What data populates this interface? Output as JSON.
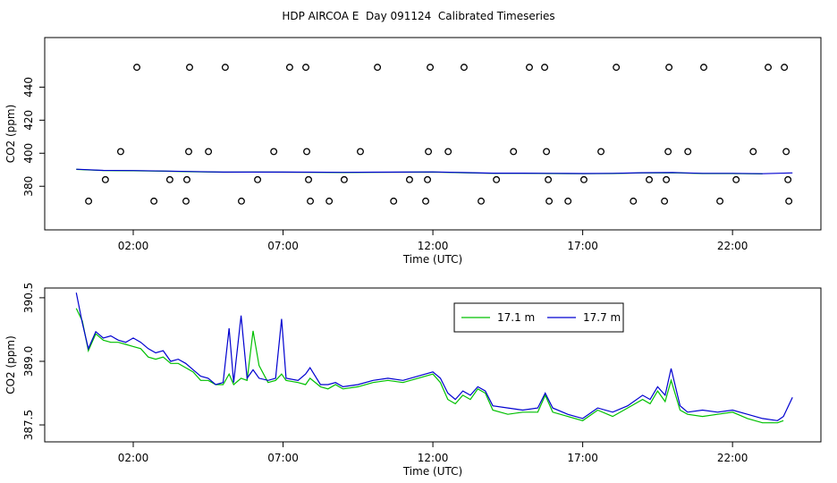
{
  "title": "HDP AIRCOA E  Day 091124  Calibrated Timeseries",
  "chart_data": [
    {
      "type": "line",
      "xlabel": "Time (UTC)",
      "ylabel": "CO2 (ppm)",
      "xlim": [
        -0.955,
        24.95
      ],
      "ylim": [
        353.6,
        470
      ],
      "xticks": [
        {
          "value": 2,
          "label": "02:00"
        },
        {
          "value": 7,
          "label": "07:00"
        },
        {
          "value": 12,
          "label": "12:00"
        },
        {
          "value": 17,
          "label": "17:00"
        },
        {
          "value": 22,
          "label": "22:00"
        }
      ],
      "yticks": [
        380,
        400,
        420,
        440
      ],
      "x": [
        0.1,
        1,
        2,
        3,
        4,
        5,
        6,
        7,
        8,
        9,
        10,
        11,
        12,
        13,
        14,
        15,
        16,
        17,
        18,
        19,
        20,
        21,
        22,
        23,
        24
      ],
      "series": [
        {
          "color": "#00c000",
          "values": [
            390.2,
            389.5,
            389.4,
            389.1,
            388.8,
            388.5,
            388.6,
            388.5,
            388.4,
            388.3,
            388.4,
            388.5,
            388.6,
            388.2,
            387.8,
            387.8,
            387.7,
            387.6,
            387.7,
            388.1,
            388.2,
            387.7,
            387.7,
            387.5,
            null
          ]
        },
        {
          "color": "#0000d0",
          "values": [
            390.3,
            389.6,
            389.5,
            389.2,
            388.9,
            388.6,
            388.6,
            388.6,
            388.5,
            388.4,
            388.5,
            388.6,
            388.7,
            388.3,
            387.9,
            387.9,
            387.8,
            387.7,
            387.8,
            388.2,
            388.3,
            387.8,
            387.8,
            387.6,
            388.1
          ]
        },
        {
          "type": "scatter",
          "color": "#000000",
          "x": [
            2.12,
            3.88,
            5.07,
            7.22,
            7.76,
            10.15,
            11.91,
            13.04,
            15.22,
            15.73,
            18.12,
            19.88,
            21.04,
            23.19,
            23.73,
            1.58,
            3.85,
            4.51,
            6.69,
            7.79,
            9.58,
            11.85,
            12.51,
            14.69,
            15.79,
            17.61,
            19.85,
            20.51,
            22.69,
            23.79,
            1.07,
            3.22,
            3.79,
            6.15,
            7.85,
            9.04,
            11.22,
            11.82,
            14.12,
            15.85,
            17.04,
            19.22,
            19.79,
            22.12,
            23.85,
            0.51,
            2.69,
            3.76,
            5.61,
            7.91,
            8.54,
            10.69,
            11.76,
            13.61,
            15.88,
            16.51,
            18.69,
            19.73,
            21.58,
            23.88
          ],
          "values": [
            452,
            452,
            452,
            452,
            452,
            452,
            452,
            452,
            452,
            452,
            452,
            452,
            452,
            452,
            452,
            401,
            401,
            401,
            401,
            401,
            401,
            401,
            401,
            401,
            401,
            401,
            401,
            401,
            401,
            401,
            384,
            384,
            384,
            384,
            384,
            384,
            384,
            384,
            384,
            384,
            384,
            384,
            384,
            384,
            384,
            371,
            371,
            371,
            371,
            371,
            371,
            371,
            371,
            371,
            371,
            371,
            371,
            371,
            371,
            371
          ]
        }
      ]
    },
    {
      "type": "line",
      "xlabel": "Time (UTC)",
      "ylabel": "CO2 (ppm)",
      "xlim": [
        -0.955,
        24.95
      ],
      "ylim": [
        387.1,
        390.73
      ],
      "xticks": [
        {
          "value": 2,
          "label": "02:00"
        },
        {
          "value": 7,
          "label": "07:00"
        },
        {
          "value": 12,
          "label": "12:00"
        },
        {
          "value": 17,
          "label": "17:00"
        },
        {
          "value": 22,
          "label": "22:00"
        }
      ],
      "yticks": [
        {
          "value": 387.5,
          "label": "387.5"
        },
        {
          "value": 389,
          "label": "389.0"
        },
        {
          "value": 390.5,
          "label": "390.5"
        }
      ],
      "legend": "top",
      "x": [
        0.1,
        0.3,
        0.5,
        0.75,
        1,
        1.25,
        1.5,
        1.75,
        2,
        2.25,
        2.5,
        2.75,
        3,
        3.25,
        3.5,
        3.75,
        4,
        4.25,
        4.5,
        4.75,
        5,
        5.2,
        5.35,
        5.6,
        5.8,
        6,
        6.2,
        6.5,
        6.75,
        6.95,
        7.1,
        7.5,
        7.75,
        7.9,
        8.25,
        8.5,
        8.75,
        9,
        9.5,
        10,
        10.5,
        11,
        11.5,
        12,
        12.25,
        12.5,
        12.75,
        13,
        13.25,
        13.5,
        13.75,
        14,
        14.5,
        15,
        15.5,
        15.75,
        16,
        16.5,
        17,
        17.5,
        18,
        18.5,
        19,
        19.25,
        19.5,
        19.75,
        19.95,
        20.25,
        20.5,
        21,
        21.5,
        22,
        22.5,
        23,
        23.5,
        23.7,
        24
      ],
      "series": [
        {
          "name": "17.1 m",
          "color": "#00c000",
          "values": [
            390.25,
            389.95,
            389.25,
            389.65,
            389.5,
            389.45,
            389.45,
            389.4,
            389.35,
            389.3,
            389.1,
            389.05,
            389.1,
            388.95,
            388.95,
            388.85,
            388.75,
            388.55,
            388.55,
            388.45,
            388.45,
            388.7,
            388.45,
            388.6,
            388.55,
            389.72,
            388.9,
            388.5,
            388.55,
            388.7,
            388.55,
            388.5,
            388.45,
            388.6,
            388.4,
            388.35,
            388.45,
            388.35,
            388.4,
            388.5,
            388.55,
            388.5,
            388.6,
            388.7,
            388.5,
            388.1,
            388.0,
            388.2,
            388.1,
            388.35,
            388.25,
            387.85,
            387.75,
            387.8,
            387.8,
            388.2,
            387.8,
            387.7,
            387.6,
            387.85,
            387.7,
            387.9,
            388.1,
            388.0,
            388.3,
            388.05,
            388.55,
            387.85,
            387.75,
            387.7,
            387.75,
            387.8,
            387.65,
            387.55,
            387.55,
            387.6,
            null
          ]
        },
        {
          "name": "17.7 m",
          "color": "#0000d0",
          "values": [
            390.62,
            389.9,
            389.3,
            389.7,
            389.55,
            389.6,
            389.5,
            389.45,
            389.55,
            389.45,
            389.3,
            389.2,
            389.25,
            389.0,
            389.05,
            388.95,
            388.8,
            388.65,
            388.6,
            388.45,
            388.5,
            389.78,
            388.5,
            390.08,
            388.6,
            388.8,
            388.6,
            388.55,
            388.6,
            390.0,
            388.6,
            388.55,
            388.7,
            388.85,
            388.45,
            388.45,
            388.5,
            388.4,
            388.45,
            388.55,
            388.6,
            388.55,
            388.65,
            388.75,
            388.6,
            388.25,
            388.1,
            388.3,
            388.2,
            388.4,
            388.3,
            387.95,
            387.9,
            387.85,
            387.9,
            388.25,
            387.9,
            387.75,
            387.65,
            387.9,
            387.8,
            387.95,
            388.2,
            388.1,
            388.4,
            388.2,
            388.83,
            387.95,
            387.8,
            387.85,
            387.8,
            387.85,
            387.75,
            387.65,
            387.6,
            387.7,
            388.15
          ]
        }
      ]
    }
  ]
}
